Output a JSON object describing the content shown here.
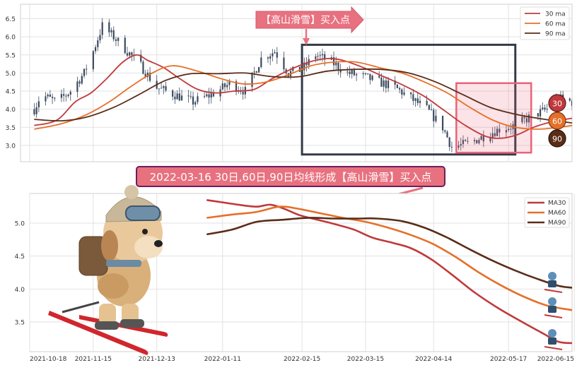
{
  "colors": {
    "ma30": "#c0393b",
    "ma60": "#e5702a",
    "ma90": "#5a2d18",
    "candle": "#3b4a5e",
    "box_dark": "#343a48",
    "box_pink": "#e86479",
    "banner_fill": "#e8717f",
    "banner_border": "#6b1f5e"
  },
  "banner": {
    "text": "2022-03-16 30日,60日,90日均线形成【高山滑雪】买入点"
  },
  "callout": {
    "text": "【高山滑雪】买入点"
  },
  "chart_data": [
    {
      "type": "line",
      "name": "top-candlestick-with-ma",
      "ylim": [
        2.55,
        6.9
      ],
      "yticks": [
        "3.0",
        "3.5",
        "4.0",
        "4.5",
        "5.0",
        "5.5",
        "6.0",
        "6.5"
      ],
      "legend": {
        "placement": "top-right",
        "entries": [
          "30 ma",
          "60 ma",
          "90 ma"
        ]
      },
      "grid": true,
      "badges": [
        "30",
        "60",
        "90"
      ],
      "price_anchors": [
        {
          "date": "2021-10-20",
          "value": 4.0
        },
        {
          "date": "2021-10-23",
          "value": 4.4
        },
        {
          "date": "2021-10-30",
          "value": 4.2
        },
        {
          "date": "2021-11-05",
          "value": 4.5
        },
        {
          "date": "2021-11-11",
          "value": 5.0
        },
        {
          "date": "2021-11-15",
          "value": 5.6
        },
        {
          "date": "2021-11-19",
          "value": 6.3
        },
        {
          "date": "2021-11-24",
          "value": 6.0
        },
        {
          "date": "2021-11-30",
          "value": 5.6
        },
        {
          "date": "2021-12-06",
          "value": 5.2
        },
        {
          "date": "2021-12-13",
          "value": 4.6
        },
        {
          "date": "2021-12-21",
          "value": 4.4
        },
        {
          "date": "2021-12-29",
          "value": 4.2
        },
        {
          "date": "2022-01-06",
          "value": 4.4
        },
        {
          "date": "2022-01-14",
          "value": 4.7
        },
        {
          "date": "2022-01-21",
          "value": 4.5
        },
        {
          "date": "2022-01-28",
          "value": 5.4
        },
        {
          "date": "2022-02-03",
          "value": 5.6
        },
        {
          "date": "2022-02-09",
          "value": 5.0
        },
        {
          "date": "2022-02-15",
          "value": 5.1
        },
        {
          "date": "2022-02-21",
          "value": 5.5
        },
        {
          "date": "2022-02-28",
          "value": 5.3
        },
        {
          "date": "2022-03-07",
          "value": 5.0
        },
        {
          "date": "2022-03-14",
          "value": 4.9
        },
        {
          "date": "2022-03-21",
          "value": 4.75
        },
        {
          "date": "2022-03-28",
          "value": 4.6
        },
        {
          "date": "2022-04-04",
          "value": 4.3
        },
        {
          "date": "2022-04-11",
          "value": 4.0
        },
        {
          "date": "2022-04-18",
          "value": 3.5
        },
        {
          "date": "2022-04-22",
          "value": 2.95
        },
        {
          "date": "2022-04-29",
          "value": 3.05
        },
        {
          "date": "2022-05-06",
          "value": 3.25
        },
        {
          "date": "2022-05-13",
          "value": 3.45
        },
        {
          "date": "2022-05-20",
          "value": 3.55
        },
        {
          "date": "2022-05-27",
          "value": 3.8
        },
        {
          "date": "2022-06-03",
          "value": 4.0
        },
        {
          "date": "2022-06-08",
          "value": 4.3
        },
        {
          "date": "2022-06-14",
          "value": 4.2
        }
      ],
      "series": [
        {
          "name": "30 ma",
          "points": [
            [
              "2021-10-20",
              3.55
            ],
            [
              "2021-10-30",
              3.7
            ],
            [
              "2021-11-07",
              4.2
            ],
            [
              "2021-11-14",
              4.45
            ],
            [
              "2021-11-21",
              4.85
            ],
            [
              "2021-11-28",
              5.3
            ],
            [
              "2021-12-04",
              5.5
            ],
            [
              "2021-12-09",
              5.35
            ],
            [
              "2021-12-16",
              5.15
            ],
            [
              "2021-12-23",
              4.85
            ],
            [
              "2021-12-31",
              4.55
            ],
            [
              "2022-01-08",
              4.45
            ],
            [
              "2022-01-16",
              4.5
            ],
            [
              "2022-01-25",
              4.55
            ],
            [
              "2022-02-02",
              4.85
            ],
            [
              "2022-02-10",
              5.1
            ],
            [
              "2022-02-18",
              5.3
            ],
            [
              "2022-02-26",
              5.4
            ],
            [
              "2022-03-05",
              5.35
            ],
            [
              "2022-03-14",
              5.15
            ],
            [
              "2022-03-23",
              4.9
            ],
            [
              "2022-04-01",
              4.65
            ],
            [
              "2022-04-10",
              4.35
            ],
            [
              "2022-04-19",
              3.95
            ],
            [
              "2022-04-28",
              3.55
            ],
            [
              "2022-05-07",
              3.25
            ],
            [
              "2022-05-14",
              3.2
            ],
            [
              "2022-05-21",
              3.3
            ],
            [
              "2022-05-28",
              3.5
            ],
            [
              "2022-06-05",
              3.65
            ],
            [
              "2022-06-14",
              3.75
            ]
          ]
        },
        {
          "name": "60 ma",
          "points": [
            [
              "2021-10-20",
              3.45
            ],
            [
              "2021-11-01",
              3.6
            ],
            [
              "2021-11-12",
              3.85
            ],
            [
              "2021-11-22",
              4.2
            ],
            [
              "2021-12-01",
              4.6
            ],
            [
              "2021-12-11",
              5.0
            ],
            [
              "2021-12-20",
              5.2
            ],
            [
              "2021-12-31",
              5.05
            ],
            [
              "2022-01-10",
              4.85
            ],
            [
              "2022-01-20",
              4.7
            ],
            [
              "2022-01-30",
              4.75
            ],
            [
              "2022-02-09",
              4.95
            ],
            [
              "2022-02-19",
              5.2
            ],
            [
              "2022-03-01",
              5.3
            ],
            [
              "2022-03-11",
              5.3
            ],
            [
              "2022-03-21",
              5.15
            ],
            [
              "2022-03-31",
              5.0
            ],
            [
              "2022-04-10",
              4.75
            ],
            [
              "2022-04-20",
              4.45
            ],
            [
              "2022-04-30",
              4.05
            ],
            [
              "2022-05-10",
              3.7
            ],
            [
              "2022-05-20",
              3.5
            ],
            [
              "2022-05-30",
              3.45
            ],
            [
              "2022-06-08",
              3.5
            ],
            [
              "2022-06-14",
              3.55
            ]
          ]
        },
        {
          "name": "90 ma",
          "points": [
            [
              "2021-10-20",
              3.72
            ],
            [
              "2021-11-01",
              3.68
            ],
            [
              "2021-11-12",
              3.78
            ],
            [
              "2021-11-24",
              4.05
            ],
            [
              "2021-12-05",
              4.4
            ],
            [
              "2021-12-17",
              4.8
            ],
            [
              "2021-12-28",
              4.98
            ],
            [
              "2022-01-09",
              4.98
            ],
            [
              "2022-01-21",
              5.0
            ],
            [
              "2022-02-02",
              4.9
            ],
            [
              "2022-02-14",
              4.9
            ],
            [
              "2022-02-26",
              5.05
            ],
            [
              "2022-03-10",
              5.1
            ],
            [
              "2022-03-22",
              5.1
            ],
            [
              "2022-04-03",
              5.0
            ],
            [
              "2022-04-15",
              4.75
            ],
            [
              "2022-04-27",
              4.4
            ],
            [
              "2022-05-09",
              4.05
            ],
            [
              "2022-05-21",
              3.85
            ],
            [
              "2022-06-02",
              3.72
            ],
            [
              "2022-06-14",
              3.62
            ]
          ]
        }
      ],
      "annotations": [
        {
          "kind": "rect",
          "style": "dark",
          "x0": "2022-02-15",
          "x1": "2022-05-20",
          "y0": 2.75,
          "y1": 5.78
        },
        {
          "kind": "rect",
          "style": "pink",
          "x0": "2022-04-24",
          "x1": "2022-05-27",
          "y0": 2.8,
          "y1": 4.72
        }
      ]
    },
    {
      "type": "line",
      "name": "bottom-ma-zoom",
      "xlim": [
        "2021-10-18",
        "2022-06-14"
      ],
      "ylim": [
        3.05,
        5.45
      ],
      "yticks": [
        "3.5",
        "4.0",
        "4.5",
        "5.0"
      ],
      "xticks": [
        "2021-10-18",
        "2021-11-15",
        "2021-12-13",
        "2022-01-11",
        "2022-02-15",
        "2022-03-15",
        "2022-04-14",
        "2022-05-17",
        "2022-06-15"
      ],
      "legend": {
        "placement": "top-right",
        "entries": [
          "MA30",
          "MA60",
          "MA90"
        ]
      },
      "grid": true,
      "series": [
        {
          "name": "MA30",
          "points": [
            [
              "2022-01-04",
              5.35
            ],
            [
              "2022-01-10",
              5.32
            ],
            [
              "2022-01-18",
              5.28
            ],
            [
              "2022-01-26",
              5.25
            ],
            [
              "2022-02-01",
              5.28
            ],
            [
              "2022-02-07",
              5.22
            ],
            [
              "2022-02-14",
              5.12
            ],
            [
              "2022-02-22",
              5.05
            ],
            [
              "2022-03-02",
              4.98
            ],
            [
              "2022-03-10",
              4.9
            ],
            [
              "2022-03-18",
              4.78
            ],
            [
              "2022-03-27",
              4.7
            ],
            [
              "2022-04-04",
              4.62
            ],
            [
              "2022-04-13",
              4.45
            ],
            [
              "2022-04-22",
              4.22
            ],
            [
              "2022-05-02",
              3.95
            ],
            [
              "2022-05-12",
              3.72
            ],
            [
              "2022-05-22",
              3.52
            ],
            [
              "2022-06-01",
              3.33
            ],
            [
              "2022-06-08",
              3.2
            ],
            [
              "2022-06-14",
              3.18
            ]
          ]
        },
        {
          "name": "MA60",
          "points": [
            [
              "2022-01-04",
              5.08
            ],
            [
              "2022-01-15",
              5.13
            ],
            [
              "2022-01-26",
              5.17
            ],
            [
              "2022-02-05",
              5.25
            ],
            [
              "2022-02-13",
              5.22
            ],
            [
              "2022-02-23",
              5.15
            ],
            [
              "2022-03-05",
              5.08
            ],
            [
              "2022-03-15",
              5.02
            ],
            [
              "2022-03-25",
              4.93
            ],
            [
              "2022-04-04",
              4.82
            ],
            [
              "2022-04-14",
              4.68
            ],
            [
              "2022-04-24",
              4.48
            ],
            [
              "2022-05-04",
              4.25
            ],
            [
              "2022-05-14",
              4.05
            ],
            [
              "2022-05-24",
              3.88
            ],
            [
              "2022-06-03",
              3.75
            ],
            [
              "2022-06-14",
              3.68
            ]
          ]
        },
        {
          "name": "MA90",
          "points": [
            [
              "2022-01-04",
              4.83
            ],
            [
              "2022-01-15",
              4.9
            ],
            [
              "2022-01-26",
              5.02
            ],
            [
              "2022-02-06",
              5.05
            ],
            [
              "2022-02-18",
              5.08
            ],
            [
              "2022-03-01",
              5.07
            ],
            [
              "2022-03-12",
              5.07
            ],
            [
              "2022-03-20",
              5.07
            ],
            [
              "2022-03-31",
              5.03
            ],
            [
              "2022-04-10",
              4.93
            ],
            [
              "2022-04-20",
              4.78
            ],
            [
              "2022-04-30",
              4.6
            ],
            [
              "2022-05-10",
              4.43
            ],
            [
              "2022-05-20",
              4.28
            ],
            [
              "2022-05-30",
              4.15
            ],
            [
              "2022-06-08",
              4.05
            ],
            [
              "2022-06-14",
              4.02
            ]
          ]
        }
      ]
    }
  ]
}
